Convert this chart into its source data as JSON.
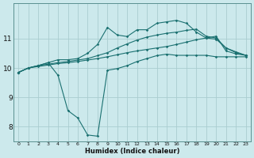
{
  "xlabel": "Humidex (Indice chaleur)",
  "bg_color": "#cce9ec",
  "grid_color": "#aacdd0",
  "line_color": "#1a7070",
  "x_values": [
    0,
    1,
    2,
    3,
    4,
    5,
    6,
    7,
    8,
    9,
    10,
    11,
    12,
    13,
    14,
    15,
    16,
    17,
    18,
    19,
    20,
    21,
    22,
    23
  ],
  "series": {
    "line1": [
      9.85,
      10.0,
      10.05,
      10.1,
      10.15,
      10.18,
      10.22,
      10.27,
      10.32,
      10.38,
      10.45,
      10.52,
      10.58,
      10.63,
      10.68,
      10.73,
      10.8,
      10.88,
      10.96,
      11.02,
      11.08,
      10.58,
      10.48,
      10.43
    ],
    "line2": [
      9.85,
      10.0,
      10.08,
      10.13,
      10.18,
      10.22,
      10.27,
      10.32,
      10.42,
      10.52,
      10.68,
      10.82,
      10.95,
      11.05,
      11.12,
      11.18,
      11.22,
      11.28,
      11.32,
      11.08,
      11.02,
      10.68,
      10.55,
      10.43
    ],
    "line3": [
      9.85,
      10.0,
      10.08,
      10.18,
      9.75,
      8.55,
      8.3,
      7.72,
      7.68,
      9.92,
      9.98,
      10.08,
      10.22,
      10.32,
      10.42,
      10.47,
      10.43,
      10.43,
      10.43,
      10.43,
      10.38,
      10.38,
      10.38,
      10.38
    ],
    "line4": [
      9.85,
      10.0,
      10.08,
      10.18,
      10.28,
      10.28,
      10.32,
      10.5,
      10.8,
      11.38,
      11.12,
      11.07,
      11.3,
      11.3,
      11.52,
      11.57,
      11.62,
      11.52,
      11.22,
      11.02,
      10.98,
      10.68,
      10.52,
      10.43
    ]
  },
  "ylim": [
    7.5,
    12.2
  ],
  "yticks": [
    8,
    9,
    10,
    11
  ],
  "ytick_labels": [
    "8",
    "9",
    "10",
    "11"
  ],
  "xlim": [
    -0.5,
    23.5
  ],
  "xticks": [
    0,
    1,
    2,
    3,
    4,
    5,
    6,
    7,
    8,
    9,
    10,
    11,
    12,
    13,
    14,
    15,
    16,
    17,
    18,
    19,
    20,
    21,
    22,
    23
  ],
  "xtick_labels": [
    "0",
    "1",
    "2",
    "3",
    "4",
    "5",
    "6",
    "7",
    "8",
    "9",
    "10",
    "11",
    "12",
    "13",
    "14",
    "15",
    "16",
    "17",
    "18",
    "19",
    "20",
    "21",
    "22",
    "23"
  ]
}
